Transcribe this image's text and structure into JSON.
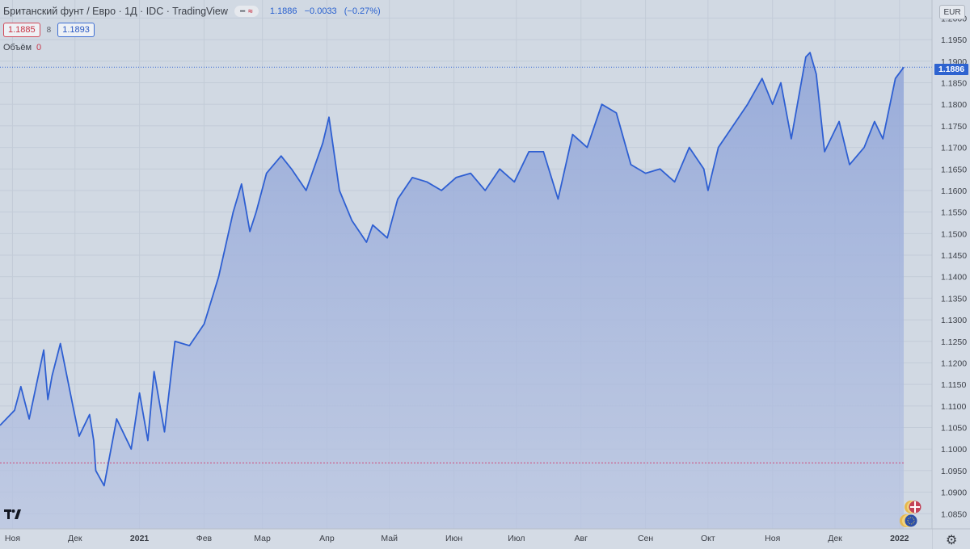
{
  "header": {
    "title": "Британский фунт / Евро · 1Д · IDC · TradingView",
    "pill_icon": "minus-icon",
    "pill_wave": "≈",
    "last_price": "1.1886",
    "change": "−0.0033",
    "change_pct": "(−0.27%)"
  },
  "bid": "1.1885",
  "spread": "8",
  "ask": "1.1893",
  "volume": {
    "label": "Объём",
    "value": "0"
  },
  "currency": "EUR",
  "current_price_tag": "1.1886",
  "logo_text": "TV",
  "gear_icon": "⚙",
  "colors": {
    "line": "#2e5fd2",
    "area_top": "#8fa4d8",
    "area_bottom": "#b8c4e2",
    "background": "#d1d9e3",
    "grid": "#c3ccd8",
    "price_line": "#3f6fd4",
    "low_line": "#cf4a7a"
  },
  "chart_data": {
    "type": "area",
    "title": "Британский фунт / Евро · 1Д · IDC · TradingView",
    "xlabel": "",
    "ylabel": "",
    "ylim": [
      1.0815,
      1.2042
    ],
    "x_ticks": [
      "Ноя",
      "Дек",
      "2021",
      "Фев",
      "Мар",
      "Апр",
      "Май",
      "Июн",
      "Июл",
      "Авг",
      "Сен",
      "Окт",
      "Ноя",
      "Дек",
      "2022"
    ],
    "y_ticks": [
      "1.2000",
      "1.1950",
      "1.1900",
      "1.1850",
      "1.1800",
      "1.1750",
      "1.1700",
      "1.1650",
      "1.1600",
      "1.1550",
      "1.1500",
      "1.1450",
      "1.1400",
      "1.1350",
      "1.1300",
      "1.1250",
      "1.1200",
      "1.1150",
      "1.1100",
      "1.1050",
      "1.1000",
      "1.0950",
      "1.0900",
      "1.0850"
    ],
    "current_price": 1.1886,
    "low_marker": 1.0968,
    "grid": true,
    "series": [
      {
        "x": [
          "2020-10-26",
          "2020-11-02",
          "2020-11-05",
          "2020-11-09",
          "2020-11-16",
          "2020-11-18",
          "2020-11-20",
          "2020-11-24",
          "2020-11-30",
          "2020-12-03",
          "2020-12-08",
          "2020-12-10",
          "2020-12-11",
          "2020-12-15",
          "2020-12-21",
          "2020-12-28",
          "2021-01-01",
          "2021-01-05",
          "2021-01-08",
          "2021-01-13",
          "2021-01-18",
          "2021-01-25",
          "2021-02-01",
          "2021-02-08",
          "2021-02-15",
          "2021-02-19",
          "2021-02-23",
          "2021-02-26",
          "2021-03-03",
          "2021-03-10",
          "2021-03-15",
          "2021-03-22",
          "2021-03-30",
          "2021-04-02",
          "2021-04-07",
          "2021-04-13",
          "2021-04-20",
          "2021-04-23",
          "2021-04-30",
          "2021-05-05",
          "2021-05-12",
          "2021-05-19",
          "2021-05-26",
          "2021-06-02",
          "2021-06-09",
          "2021-06-16",
          "2021-06-23",
          "2021-06-30",
          "2021-07-07",
          "2021-07-14",
          "2021-07-21",
          "2021-07-28",
          "2021-08-04",
          "2021-08-11",
          "2021-08-18",
          "2021-08-25",
          "2021-09-01",
          "2021-09-08",
          "2021-09-15",
          "2021-09-22",
          "2021-09-29",
          "2021-10-01",
          "2021-10-06",
          "2021-10-13",
          "2021-10-20",
          "2021-10-27",
          "2021-11-01",
          "2021-11-05",
          "2021-11-10",
          "2021-11-17",
          "2021-11-19",
          "2021-11-22",
          "2021-11-26",
          "2021-12-03",
          "2021-12-08",
          "2021-12-15",
          "2021-12-20",
          "2021-12-24",
          "2021-12-30",
          "2022-01-03"
        ],
        "y": [
          1.1055,
          1.109,
          1.1145,
          1.107,
          1.123,
          1.1115,
          1.117,
          1.1245,
          1.11,
          1.103,
          1.108,
          1.102,
          1.095,
          1.0915,
          1.107,
          1.1,
          1.113,
          1.102,
          1.118,
          1.104,
          1.125,
          1.124,
          1.129,
          1.14,
          1.155,
          1.1615,
          1.1505,
          1.155,
          1.164,
          1.168,
          1.165,
          1.16,
          1.171,
          1.177,
          1.16,
          1.153,
          1.148,
          1.152,
          1.149,
          1.158,
          1.163,
          1.162,
          1.16,
          1.163,
          1.164,
          1.16,
          1.165,
          1.162,
          1.169,
          1.169,
          1.158,
          1.173,
          1.17,
          1.18,
          1.178,
          1.166,
          1.164,
          1.165,
          1.162,
          1.17,
          1.165,
          1.16,
          1.17,
          1.175,
          1.18,
          1.186,
          1.18,
          1.185,
          1.172,
          1.191,
          1.192,
          1.187,
          1.169,
          1.176,
          1.166,
          1.17,
          1.176,
          1.172,
          1.186,
          1.1886
        ]
      }
    ]
  }
}
